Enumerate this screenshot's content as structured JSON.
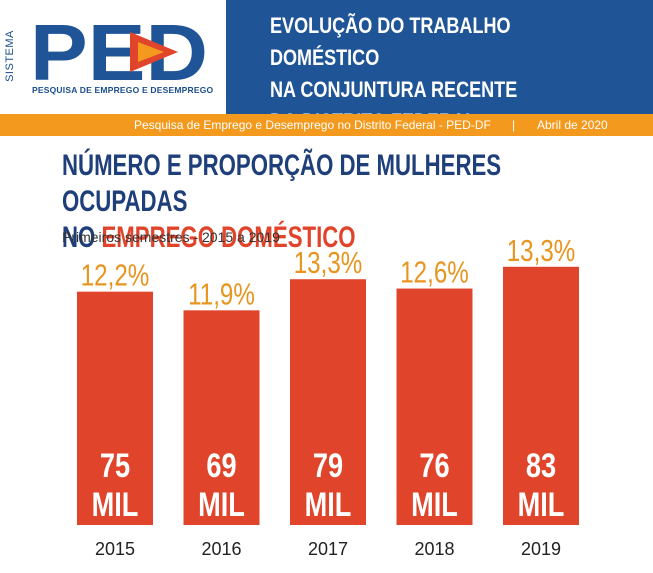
{
  "header": {
    "logo_side_text": "SISTEMA",
    "logo_mark": "PED",
    "logo_caption": "PESQUISA DE EMPREGO E DESEMPREGO",
    "title": "EVOLUÇÃO DO TRABALHO DOMÉSTICO\nNA CONJUNTURA RECENTE\nDO DISTRITO FEDERAL"
  },
  "subbar": {
    "source": "Pesquisa de Emprego e Desemprego no Distrito Federal - PED-DF",
    "separator": "|",
    "date": "Abril de 2020"
  },
  "colors": {
    "navy": "#1f5597",
    "orange": "#f39a1e",
    "bar_red": "#e0452b",
    "title_blue": "#1f3f7a",
    "label_orange": "#e8951f"
  },
  "chart_data": {
    "type": "bar",
    "title_part1": "NÚMERO E PROPORÇÃO DE MULHERES OCUPADAS",
    "title_part2": "NO ",
    "title_accent": "EMPREGO DOMÉSTICO",
    "subtitle": "Primeiros semestres - 2015 a 2019",
    "categories": [
      "2015",
      "2016",
      "2017",
      "2018",
      "2019"
    ],
    "series": [
      {
        "values": [
          75,
          69,
          79,
          76,
          83
        ],
        "labels": [
          "75",
          "69",
          "79",
          "76",
          "83"
        ],
        "unit": "MIL"
      },
      {
        "values": [
          12.2,
          11.9,
          13.3,
          12.6,
          13.3
        ],
        "labels": [
          "12,2%",
          "11,9%",
          "13,3%",
          "12,6%",
          "13,3%"
        ]
      }
    ]
  }
}
